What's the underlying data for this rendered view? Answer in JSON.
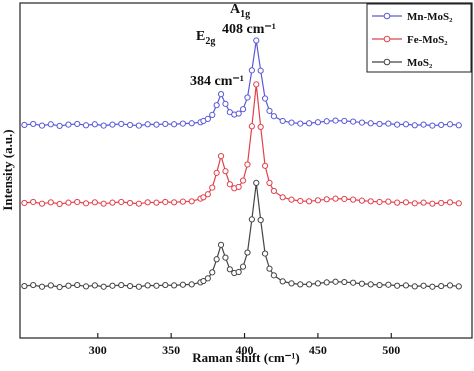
{
  "chart_data": {
    "type": "line",
    "x_label": "Raman shift (cm⁻¹)",
    "y_label": "Intensity (a.u.)",
    "xlim": [
      247,
      555
    ],
    "ylim": [
      0,
      100
    ],
    "xticks": [
      300,
      350,
      400,
      450,
      500
    ],
    "legend": "upper right",
    "annotations": [
      {
        "symbol": "E",
        "subscript": "2g",
        "text": "384 cm⁻¹"
      },
      {
        "symbol": "A",
        "subscript": "1g",
        "text": "408 cm⁻¹"
      }
    ],
    "x": [
      250,
      256,
      262,
      268,
      274,
      280,
      286,
      292,
      298,
      304,
      310,
      316,
      322,
      328,
      334,
      340,
      346,
      352,
      358,
      364,
      370,
      372,
      375,
      378,
      381,
      384,
      387,
      390,
      393,
      396,
      399,
      402,
      405,
      408,
      411,
      414,
      417,
      420,
      426,
      432,
      438,
      444,
      450,
      456,
      462,
      468,
      474,
      480,
      486,
      492,
      498,
      504,
      510,
      516,
      522,
      528,
      534,
      540,
      546
    ],
    "series": [
      {
        "name": "Mn-MoS₂",
        "color": "#5a5ad8",
        "values": [
          63.6,
          63.9,
          63.4,
          63.8,
          63.3,
          63.7,
          63.9,
          63.5,
          63.8,
          63.4,
          63.7,
          63.9,
          63.6,
          63.4,
          63.8,
          63.7,
          63.9,
          63.8,
          64.0,
          64.1,
          64.4,
          64.8,
          65.4,
          66.6,
          69.5,
          72.8,
          69.9,
          67.4,
          66.7,
          67.0,
          68.3,
          71.8,
          79.9,
          88.8,
          79.8,
          71.5,
          67.8,
          66.2,
          64.8,
          64.3,
          64.0,
          64.1,
          64.4,
          64.7,
          64.9,
          64.8,
          64.6,
          64.3,
          64.1,
          63.9,
          64.0,
          63.7,
          63.8,
          63.5,
          63.7,
          63.4,
          63.6,
          63.8,
          63.5
        ]
      },
      {
        "name": "Fe-MoS₂",
        "color": "#e2404c",
        "values": [
          40.3,
          40.6,
          40.1,
          40.5,
          40.0,
          40.4,
          40.6,
          40.2,
          40.5,
          40.1,
          40.4,
          40.6,
          40.3,
          40.1,
          40.5,
          40.4,
          40.6,
          40.5,
          40.7,
          40.8,
          41.6,
          42.0,
          42.9,
          44.9,
          49.3,
          54.3,
          49.8,
          45.9,
          44.7,
          45.1,
          47.0,
          51.8,
          63.2,
          75.7,
          63.0,
          51.4,
          46.3,
          43.9,
          42.0,
          41.3,
          40.9,
          40.8,
          41.1,
          41.4,
          41.6,
          41.5,
          41.3,
          41.0,
          40.8,
          40.6,
          40.7,
          40.4,
          40.5,
          40.2,
          40.4,
          40.1,
          40.3,
          40.5,
          40.2
        ]
      },
      {
        "name": "MoS₂",
        "color": "#444444",
        "values": [
          15.5,
          15.8,
          15.3,
          15.7,
          15.2,
          15.6,
          15.8,
          15.4,
          15.7,
          15.3,
          15.6,
          15.8,
          15.5,
          15.3,
          15.7,
          15.6,
          15.8,
          15.7,
          15.9,
          16.0,
          16.6,
          17.0,
          17.8,
          19.6,
          23.5,
          27.8,
          24.0,
          20.5,
          19.4,
          19.7,
          21.3,
          25.5,
          35.4,
          46.3,
          35.2,
          25.2,
          20.7,
          18.7,
          16.9,
          16.3,
          16.0,
          16.0,
          16.3,
          16.6,
          16.8,
          16.7,
          16.5,
          16.2,
          16.0,
          15.8,
          15.9,
          15.6,
          15.7,
          15.4,
          15.6,
          15.3,
          15.5,
          15.7,
          15.4
        ]
      }
    ]
  }
}
